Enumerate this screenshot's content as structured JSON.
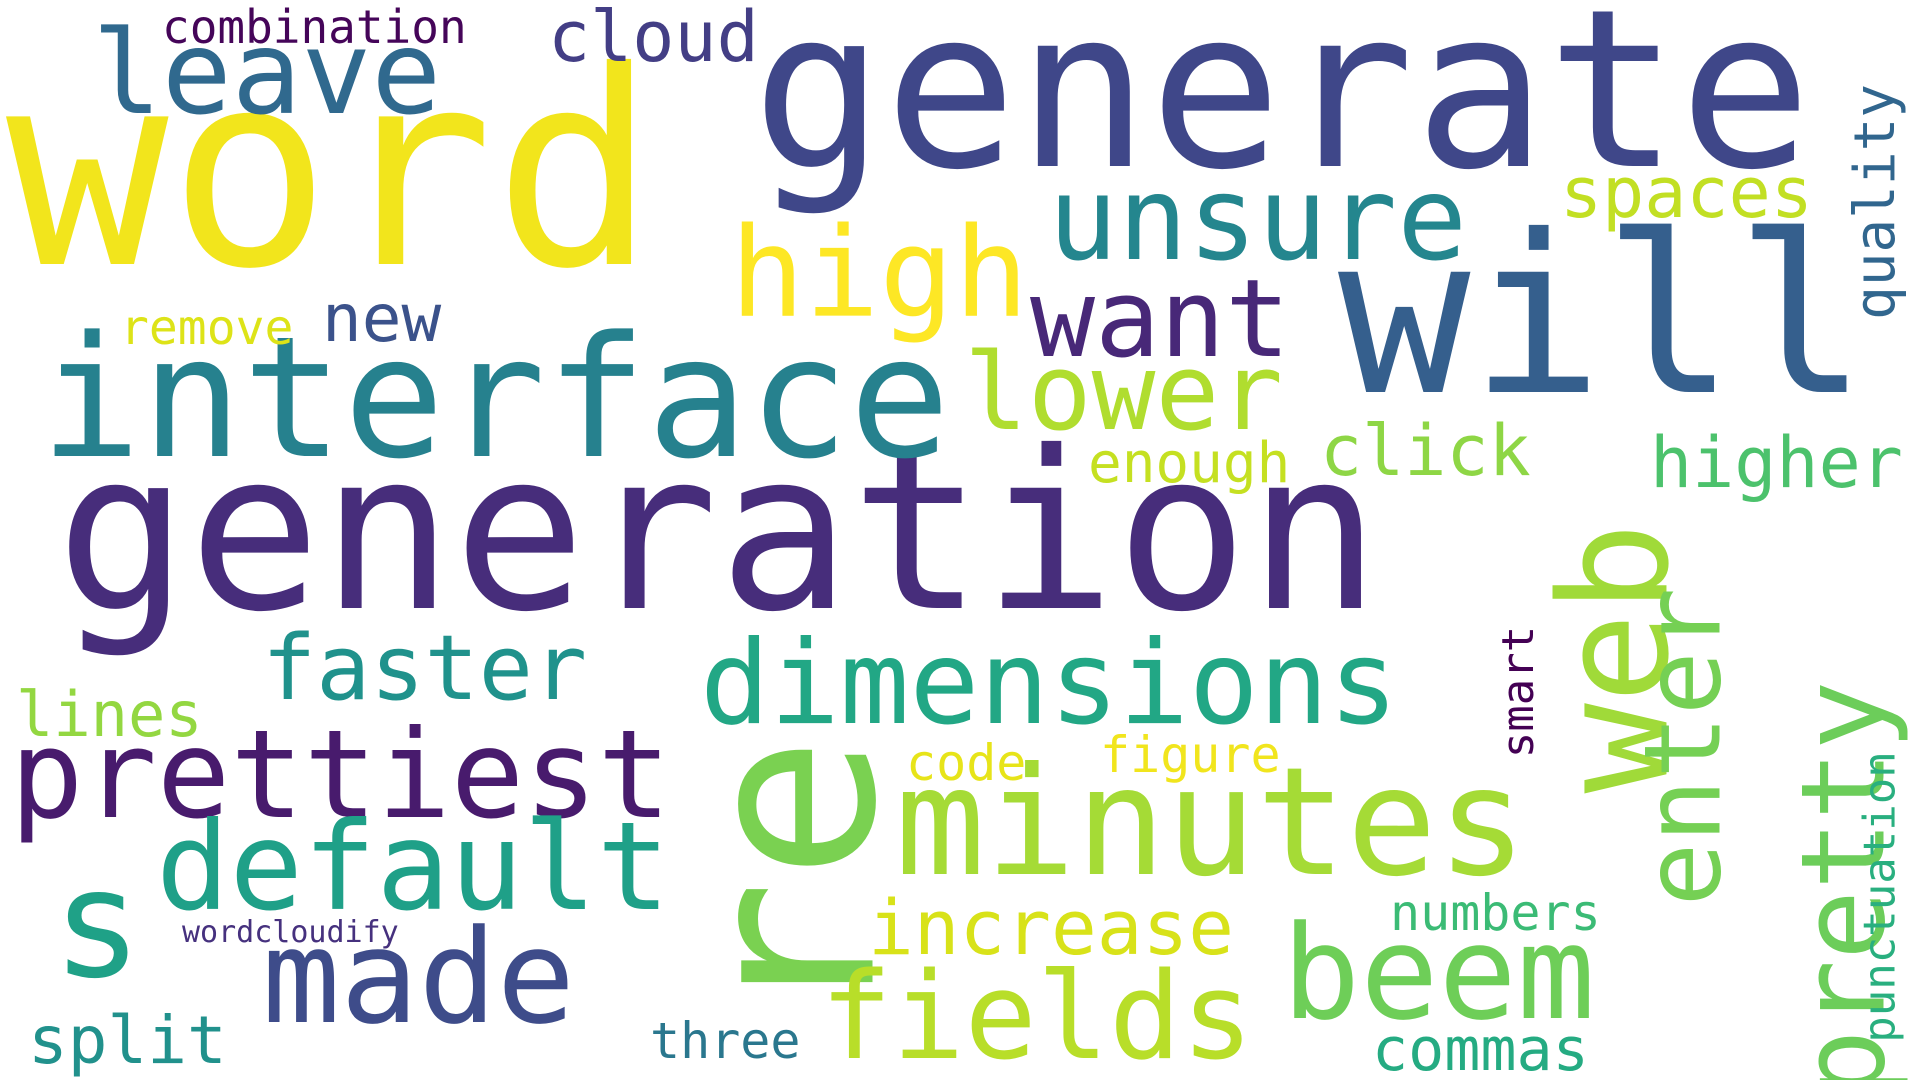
{
  "words": [
    {
      "text": "word",
      "color": "#f2e51c"
    },
    {
      "text": "generate",
      "color": "#3f4789"
    },
    {
      "text": "generation",
      "color": "#472d7b"
    },
    {
      "text": "interface",
      "color": "#26818e"
    },
    {
      "text": "will",
      "color": "#355f8d"
    },
    {
      "text": "re",
      "color": "#7ad151"
    },
    {
      "text": "minutes",
      "color": "#a5db36"
    },
    {
      "text": "web",
      "color": "#a0da39"
    },
    {
      "text": "unsure",
      "color": "#24868e"
    },
    {
      "text": "leave",
      "color": "#30698e"
    },
    {
      "text": "high",
      "color": "#fde725"
    },
    {
      "text": "want",
      "color": "#482878"
    },
    {
      "text": "lower",
      "color": "#b0dd2f"
    },
    {
      "text": "dimensions",
      "color": "#22a785"
    },
    {
      "text": "prettiest",
      "color": "#481b6d"
    },
    {
      "text": "default",
      "color": "#1fa088"
    },
    {
      "text": "made",
      "color": "#3e4c8a"
    },
    {
      "text": "fields",
      "color": "#b8de29"
    },
    {
      "text": "beem",
      "color": "#6ece58"
    },
    {
      "text": "enter",
      "color": "#75d054"
    },
    {
      "text": "pretty",
      "color": "#6ccd5a"
    },
    {
      "text": "s",
      "color": "#1fa187"
    },
    {
      "text": "faster",
      "color": "#20928c"
    },
    {
      "text": "increase",
      "color": "#d8e219"
    },
    {
      "text": "split",
      "color": "#21918c"
    },
    {
      "text": "three",
      "color": "#2a778e"
    },
    {
      "text": "commas",
      "color": "#25ab82"
    },
    {
      "text": "numbers",
      "color": "#3bbb75"
    },
    {
      "text": "punctuation",
      "color": "#29af7f"
    },
    {
      "text": "smart",
      "color": "#440154"
    },
    {
      "text": "quality",
      "color": "#31668e"
    },
    {
      "text": "spaces",
      "color": "#c2df23"
    },
    {
      "text": "higher",
      "color": "#4cc26c"
    },
    {
      "text": "click",
      "color": "#8ed645"
    },
    {
      "text": "enough",
      "color": "#c5e021"
    },
    {
      "text": "code",
      "color": "#e7e419"
    },
    {
      "text": "figure",
      "color": "#f1e51d"
    },
    {
      "text": "lines",
      "color": "#93d741"
    },
    {
      "text": "remove",
      "color": "#dde318"
    },
    {
      "text": "new",
      "color": "#3b528b"
    },
    {
      "text": "combination",
      "color": "#450559"
    },
    {
      "text": "cloud",
      "color": "#433e85"
    },
    {
      "text": "wordcloudify",
      "color": "#46317e"
    }
  ]
}
